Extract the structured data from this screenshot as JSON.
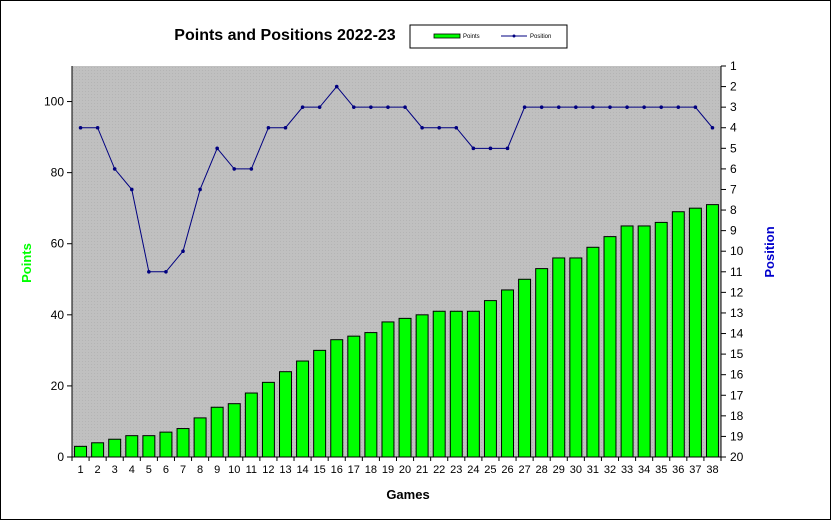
{
  "chart_data": {
    "type": "bar+line",
    "title": "Points and Positions 2022-23",
    "xlabel": "Games",
    "ylabel_left": "Points",
    "ylabel_right": "Position",
    "ylim_left": [
      0,
      110
    ],
    "yticks_left": [
      0,
      20,
      40,
      60,
      80,
      100
    ],
    "ylim_right": [
      20,
      1
    ],
    "yticks_right": [
      1,
      2,
      3,
      4,
      5,
      6,
      7,
      8,
      9,
      10,
      11,
      12,
      13,
      14,
      15,
      16,
      17,
      18,
      19,
      20
    ],
    "categories": [
      "1",
      "2",
      "3",
      "4",
      "5",
      "6",
      "7",
      "8",
      "9",
      "10",
      "11",
      "12",
      "13",
      "14",
      "15",
      "16",
      "17",
      "18",
      "19",
      "20",
      "21",
      "22",
      "23",
      "24",
      "25",
      "26",
      "27",
      "28",
      "29",
      "30",
      "31",
      "32",
      "33",
      "34",
      "35",
      "36",
      "37",
      "38"
    ],
    "legend_position": "top",
    "grid": false,
    "series": [
      {
        "name": "Points",
        "type": "bar",
        "axis": "left",
        "color": "#00ff00",
        "values": [
          3,
          4,
          5,
          6,
          6,
          7,
          8,
          11,
          14,
          15,
          18,
          21,
          24,
          27,
          30,
          33,
          34,
          35,
          38,
          39,
          40,
          41,
          41,
          41,
          44,
          47,
          50,
          53,
          56,
          56,
          59,
          62,
          65,
          65,
          66,
          69,
          70,
          71
        ]
      },
      {
        "name": "Position",
        "type": "line",
        "axis": "right",
        "color": "#000080",
        "values": [
          4,
          4,
          6,
          7,
          11,
          11,
          10,
          7,
          5,
          6,
          6,
          4,
          4,
          3,
          3,
          2,
          3,
          3,
          3,
          3,
          4,
          4,
          4,
          5,
          5,
          5,
          3,
          3,
          3,
          3,
          3,
          3,
          3,
          3,
          3,
          3,
          3,
          4
        ]
      }
    ],
    "colors": {
      "plot_background": "#c0c0c0",
      "left_axis_label": "#00ff00",
      "right_axis_label": "#0000cc"
    }
  }
}
